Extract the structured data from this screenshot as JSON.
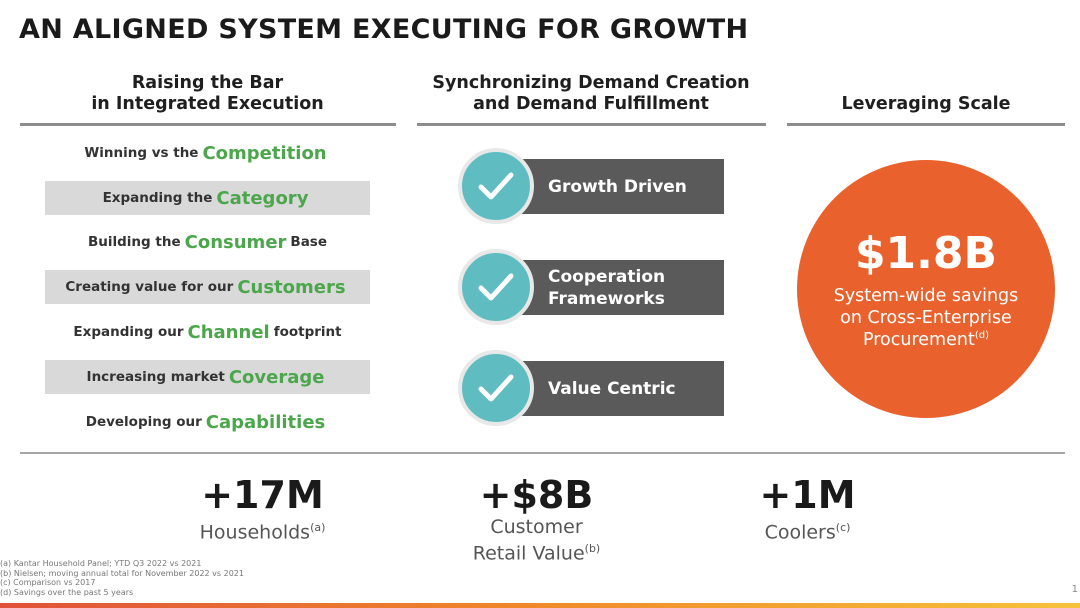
{
  "title": "AN ALIGNED SYSTEM EXECUTING FOR GROWTH",
  "columns": {
    "left_header": [
      "Raising the Bar",
      "in Integrated Execution"
    ],
    "middle_header": [
      "Synchronizing Demand Creation",
      "and Demand Fulfillment"
    ],
    "right_header": "Leveraging Scale"
  },
  "initiatives": [
    {
      "pre": "Winning vs the",
      "kw": "Competition",
      "post": "",
      "shaded": false
    },
    {
      "pre": "Expanding the",
      "kw": "Category",
      "post": "",
      "shaded": true
    },
    {
      "pre": "Building the",
      "kw": "Consumer",
      "post": "Base",
      "shaded": false
    },
    {
      "pre": "Creating value for our",
      "kw": "Customers",
      "post": "",
      "shaded": true
    },
    {
      "pre": "Expanding our",
      "kw": "Channel",
      "post": "footprint",
      "shaded": false
    },
    {
      "pre": "Increasing market",
      "kw": "Coverage",
      "post": "",
      "shaded": true
    },
    {
      "pre": "Developing our",
      "kw": "Capabilities",
      "post": "",
      "shaded": false
    }
  ],
  "pillars": [
    {
      "lines": [
        "Growth Driven"
      ],
      "icon": "check-icon"
    },
    {
      "lines": [
        "Cooperation",
        "Frameworks"
      ],
      "icon": "check-icon"
    },
    {
      "lines": [
        "Value Centric"
      ],
      "icon": "check-icon"
    }
  ],
  "scale": {
    "amount": "$1.8B",
    "lines": [
      "System-wide savings",
      "on Cross-Enterprise",
      "Procurement"
    ],
    "note": "(d)"
  },
  "metrics": [
    {
      "value": "+17M",
      "label_lines": [
        "Households"
      ],
      "note": "(a)"
    },
    {
      "value": "+$8B",
      "label_lines": [
        "Customer",
        "Retail Value"
      ],
      "note": "(b)"
    },
    {
      "value": "+1M",
      "label_lines": [
        "Coolers"
      ],
      "note": "(c)"
    }
  ],
  "footnotes": [
    "(a) Kantar Household Panel; YTD Q3 2022 vs 2021",
    "(b) Nielsen; moving annual total for November 2022 vs 2021",
    "(c) Comparison vs 2017",
    "(d) Savings over the past 5 years"
  ],
  "page_number": "1",
  "colors": {
    "accent_green": "#4ca64c",
    "check_teal": "#5fbdc2",
    "pillar_gray": "#5a5a5a",
    "orange": "#e9612c",
    "shaded_row": "#d9d9d9"
  }
}
